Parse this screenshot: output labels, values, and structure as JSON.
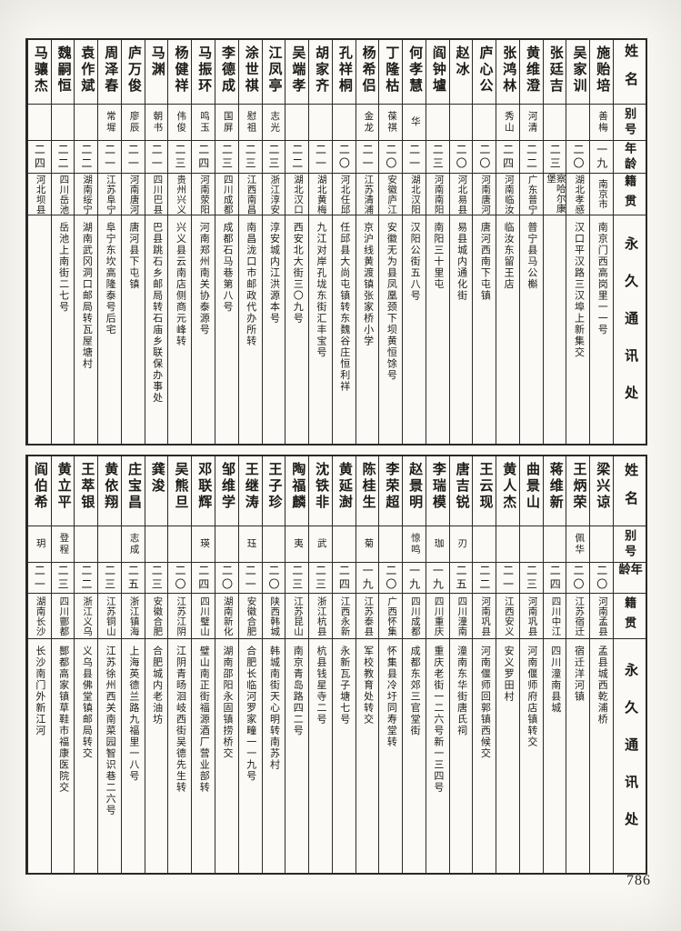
{
  "page_number": "786",
  "headers": {
    "name": "姓名",
    "alias": "别号",
    "age": "年龄",
    "native": "籍贯",
    "address": "永久通讯处"
  },
  "tables": [
    {
      "entries": [
        {
          "name": "施贻培",
          "alias": "善梅",
          "age": "一九",
          "native": "南京市",
          "address": "南京门西高岗里一一号"
        },
        {
          "name": "吴家训",
          "alias": "",
          "age": "二〇",
          "native": "湖北孝感",
          "address": "汉口平汉路三汉埠上新集交"
        },
        {
          "name": "张廷吉",
          "alias": "",
          "age": "二三",
          "native": "察哈尔康堡",
          "address": ""
        },
        {
          "name": "黄维澄",
          "alias": "河清",
          "age": "二二",
          "native": "广东普宁",
          "address": "普宁县马公槲"
        },
        {
          "name": "张鸿林",
          "alias": "秀山",
          "age": "二四",
          "native": "河南临汝",
          "address": "临汝东留王店"
        },
        {
          "name": "庐心公",
          "alias": "",
          "age": "二〇",
          "native": "河南唐河",
          "address": "唐河西南下屯镇"
        },
        {
          "name": "赵冰",
          "alias": "",
          "age": "二〇",
          "native": "河北易县",
          "address": "易县城内通化街"
        },
        {
          "name": "阎钟壚",
          "alias": "",
          "age": "二三",
          "native": "河南南阳",
          "address": "南阳三十里屯"
        },
        {
          "name": "何孝慧",
          "alias": "华",
          "age": "二一",
          "native": "湖北汉阳",
          "address": "汉阳公街五八号"
        },
        {
          "name": "丁隆枯",
          "alias": "葆祺",
          "age": "二〇",
          "native": "安徽庐江",
          "address": "安徽无为县凤凰颈下坝黄恒馀号"
        },
        {
          "name": "杨希侣",
          "alias": "金龙",
          "age": "二一",
          "native": "江苏清浦",
          "address": "京沪线黄渡镇张家桥小学"
        },
        {
          "name": "孔祥桐",
          "alias": "",
          "age": "二〇",
          "native": "河北任邱",
          "address": "任邱县大尚屯镇转东魏谷庄恒利祥"
        },
        {
          "name": "胡家齐",
          "alias": "",
          "age": "二一",
          "native": "湖北黄梅",
          "address": "九江对岸孔垅东街汇丰宝号"
        },
        {
          "name": "吴端孝",
          "alias": "",
          "age": "二二",
          "native": "湖北汉口",
          "address": "西安北大街三〇九号"
        },
        {
          "name": "江凤亭",
          "alias": "志光",
          "age": "二三",
          "native": "浙江淳安",
          "address": "淳安城内江洪源本号"
        },
        {
          "name": "涂世祺",
          "alias": "慰祖",
          "age": "二三",
          "native": "江西南昌",
          "address": "南昌泷口市邮政代办所转"
        },
        {
          "name": "李德成",
          "alias": "国屏",
          "age": "二三",
          "native": "四川成都",
          "address": "成都石马巷第八号"
        },
        {
          "name": "马振环",
          "alias": "鸣玉",
          "age": "二四",
          "native": "河南荥阳",
          "address": "河南郑州南关协泰源号"
        },
        {
          "name": "杨健祥",
          "alias": "伟俊",
          "age": "二三",
          "native": "贵州兴义",
          "address": "兴义县云南店侧商元峰转"
        },
        {
          "name": "马渊",
          "alias": "朝书",
          "age": "二一",
          "native": "四川巴县",
          "address": "巴县跳石乡邮局转石庙乡联保办事处"
        },
        {
          "name": "庐万俊",
          "alias": "廖辰",
          "age": "二一",
          "native": "河南唐河",
          "address": "唐河县下屯镇"
        },
        {
          "name": "周泽春",
          "alias": "常墀",
          "age": "二一",
          "native": "江苏阜宁",
          "address": "阜宁东坎高隆泰号后宅"
        },
        {
          "name": "袁作斌",
          "alias": "",
          "age": "二二",
          "native": "湖南绥宁",
          "address": "湖南武冈洞口邮局转瓦屋塘村"
        },
        {
          "name": "魏嗣恒",
          "alias": "",
          "age": "二二",
          "native": "四川岳池",
          "address": "岳池上南街二七号"
        },
        {
          "name": "马骧杰",
          "alias": "",
          "age": "二四",
          "native": "河北坝县",
          "address": ""
        }
      ]
    },
    {
      "entries": [
        {
          "name": "梁兴谅",
          "alias": "",
          "age": "二〇",
          "native": "河南孟县",
          "address": "孟县城西乾浦桥"
        },
        {
          "name": "王炳荣",
          "alias": "佩华",
          "age": "二〇",
          "native": "江苏宿迁",
          "address": "宿迁洋河镇"
        },
        {
          "name": "蒋维新",
          "alias": "",
          "age": "二四",
          "native": "四川中江",
          "address": "四川潼南县城"
        },
        {
          "name": "曲景山",
          "alias": "",
          "age": "二三",
          "native": "河南巩县",
          "address": "河南偃师府店镇转交"
        },
        {
          "name": "黄人杰",
          "alias": "",
          "age": "二一",
          "native": "江西安义",
          "address": "安义罗田村"
        },
        {
          "name": "王云现",
          "alias": "",
          "age": "二二",
          "native": "河南巩县",
          "address": "河南偃师回郭镇西候交"
        },
        {
          "name": "唐吉锐",
          "alias": "刃",
          "age": "二五",
          "native": "四川潼南",
          "address": "潼南东华街唐氏祠"
        },
        {
          "name": "李瑞模",
          "alias": "珈",
          "age": "一九",
          "native": "四川重庆",
          "address": "重庆老街一二六号新一三四号"
        },
        {
          "name": "赵景明",
          "alias": "惊鸣",
          "age": "一九",
          "native": "四川成都",
          "address": "成都东郊三官堂街"
        },
        {
          "name": "李荣超",
          "alias": "",
          "age": "二〇",
          "native": "广西怀集",
          "address": "怀集县冷圩同寿堂转"
        },
        {
          "name": "陈桂生",
          "alias": "菊",
          "age": "一九",
          "native": "江苏泰县",
          "address": "军校教育处转交"
        },
        {
          "name": "黄延澍",
          "alias": "",
          "age": "二四",
          "native": "江西永新",
          "address": "永新瓦子塘七号"
        },
        {
          "name": "沈铁非",
          "alias": "武",
          "age": "二三",
          "native": "浙江杭县",
          "address": "杭县钱星寺二号"
        },
        {
          "name": "陶福麟",
          "alias": "夷",
          "age": "二三",
          "native": "江苏昆山",
          "address": "南京青岛路四二号"
        },
        {
          "name": "王子珍",
          "alias": "",
          "age": "二〇",
          "native": "陕西韩城",
          "address": "韩城南街天心明转南苏村"
        },
        {
          "name": "王继涛",
          "alias": "珏",
          "age": "二一",
          "native": "安徽合肥",
          "address": "合肥长临河罗家疃一一九号"
        },
        {
          "name": "邹维学",
          "alias": "",
          "age": "二〇",
          "native": "湖南新化",
          "address": "湖南邵阳永固镇捞桥交"
        },
        {
          "name": "邓联辉",
          "alias": "瑛",
          "age": "二四",
          "native": "四川璧山",
          "address": "璧山南正街福源酒厂营业部转"
        },
        {
          "name": "吴熊旦",
          "alias": "",
          "age": "二〇",
          "native": "江苏江阴",
          "address": "江阴青旸洄岐西街吴德先生转"
        },
        {
          "name": "龚浚",
          "alias": "",
          "age": "二三",
          "native": "安徽合肥",
          "address": "合肥城内老油坊"
        },
        {
          "name": "庄宝昌",
          "alias": "志成",
          "age": "二五",
          "native": "浙江镇海",
          "address": "上海英德兰路九福里一八号"
        },
        {
          "name": "黄依翔",
          "alias": "",
          "age": "二三",
          "native": "江苏铜山",
          "address": "江苏徐州西关南菜园智识巷二六号"
        },
        {
          "name": "王萃银",
          "alias": "",
          "age": "二二",
          "native": "浙江义乌",
          "address": "义乌县佛堂镇邮局转交"
        },
        {
          "name": "黄立平",
          "alias": "登程",
          "age": "二三",
          "native": "四川酆都",
          "address": "酆都高家镇草鞋市福康医院交"
        },
        {
          "name": "阎伯希",
          "alias": "玥",
          "age": "二一",
          "native": "湖南长沙",
          "address": "长沙南门外新江河"
        }
      ]
    }
  ]
}
